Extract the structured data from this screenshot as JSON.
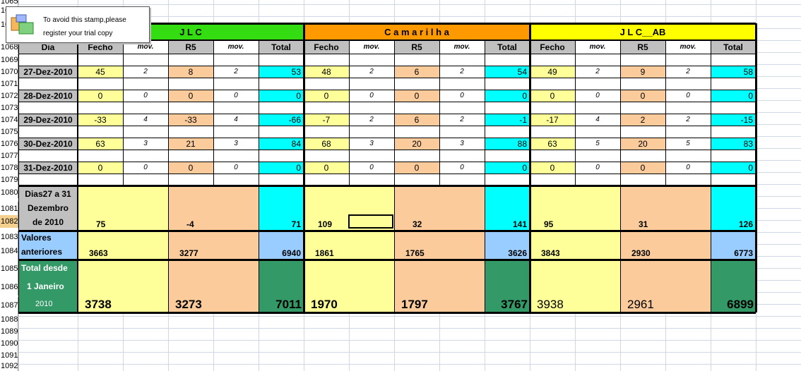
{
  "stamp": {
    "line1": "To avoid this stamp,please",
    "line2": "register your trial copy"
  },
  "row_numbers": [
    "1065",
    "1066",
    "1067",
    "1068",
    "1069",
    "1070",
    "1071",
    "1072",
    "1073",
    "1074",
    "1075",
    "1076",
    "1077",
    "1078",
    "1079",
    "1080",
    "1081",
    "1082",
    "1083",
    "1084",
    "1085",
    "1086",
    "1087",
    "1088",
    "1089",
    "1090",
    "1091",
    "1092"
  ],
  "groups": {
    "jlc": "J L C",
    "camarilha": "C a m a r i l h a",
    "jlcab": "J L C__AB"
  },
  "column_headers": {
    "dia": "Dia",
    "fecho": "Fecho",
    "mov": "mov.",
    "r5": "R5",
    "total": "Total"
  },
  "days": [
    {
      "date": "27-Dez-2010",
      "jlc": [
        "45",
        "2",
        "8",
        "2",
        "53"
      ],
      "cam": [
        "48",
        "2",
        "6",
        "2",
        "54"
      ],
      "ab": [
        "49",
        "2",
        "9",
        "2",
        "58"
      ]
    },
    {
      "date": "28-Dez-2010",
      "jlc": [
        "0",
        "0",
        "0",
        "0",
        "0"
      ],
      "cam": [
        "0",
        "0",
        "0",
        "0",
        "0"
      ],
      "ab": [
        "0",
        "0",
        "0",
        "0",
        "0"
      ]
    },
    {
      "date": "29-Dez-2010",
      "jlc": [
        "-33",
        "4",
        "-33",
        "4",
        "-66"
      ],
      "cam": [
        "-7",
        "2",
        "6",
        "2",
        "-1"
      ],
      "ab": [
        "-17",
        "4",
        "2",
        "2",
        "-15"
      ]
    },
    {
      "date": "30-Dez-2010",
      "jlc": [
        "63",
        "3",
        "21",
        "3",
        "84"
      ],
      "cam": [
        "68",
        "3",
        "20",
        "3",
        "88"
      ],
      "ab": [
        "63",
        "5",
        "20",
        "5",
        "83"
      ]
    },
    {
      "date": "31-Dez-2010",
      "jlc": [
        "0",
        "0",
        "0",
        "0",
        "0"
      ],
      "cam": [
        "0",
        "0",
        "0",
        "0",
        "0"
      ],
      "ab": [
        "0",
        "0",
        "0",
        "0",
        "0"
      ]
    }
  ],
  "summary": {
    "period_label": [
      "Dias27 a 31",
      "Dezembro",
      "de 2010"
    ],
    "period": {
      "jlc": [
        "75",
        "-4",
        "71"
      ],
      "cam": [
        "109",
        "32",
        "141"
      ],
      "ab": [
        "95",
        "31",
        "126"
      ]
    },
    "prev_label": [
      "Valores",
      "anteriores"
    ],
    "prev": {
      "jlc": [
        "3663",
        "3277",
        "6940"
      ],
      "cam": [
        "1861",
        "1765",
        "3626"
      ],
      "ab": [
        "3843",
        "2930",
        "6773"
      ]
    },
    "total_label": [
      "Total desde",
      "1 Janeiro",
      "2010"
    ],
    "total": {
      "jlc": [
        "3738",
        "3273",
        "7011"
      ],
      "cam": [
        "1970",
        "1797",
        "3767"
      ],
      "ab": [
        "3938",
        "2961",
        "6899"
      ]
    }
  },
  "colors": {
    "jlc_header": "#33dd11",
    "camarilha_header": "#ff9900",
    "jlcab_header": "#ffff00",
    "fecho_fill": "#ffff99",
    "r5_fill": "#fbcb9c",
    "total_fill": "#00ffff",
    "prev_label_fill": "#99ccff",
    "grand_total_fill": "#339966"
  }
}
